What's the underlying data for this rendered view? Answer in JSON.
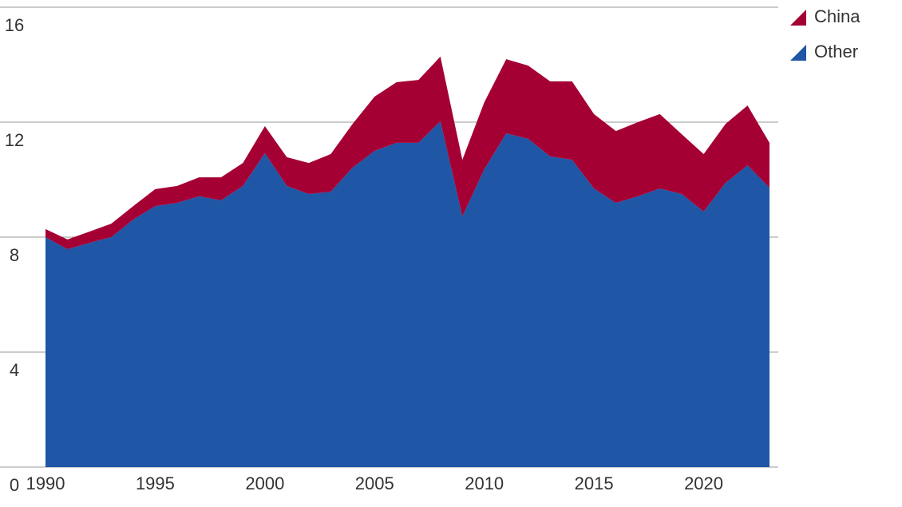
{
  "chart_data": {
    "type": "stacked_area",
    "x": [
      1990,
      1991,
      1992,
      1993,
      1994,
      1995,
      1996,
      1997,
      1998,
      1999,
      2000,
      2001,
      2002,
      2003,
      2004,
      2005,
      2006,
      2007,
      2008,
      2009,
      2010,
      2011,
      2012,
      2013,
      2014,
      2015,
      2016,
      2017,
      2018,
      2019,
      2020,
      2021,
      2022,
      2023
    ],
    "series": [
      {
        "name": "China",
        "color": "#a50034",
        "values": [
          0.28,
          0.34,
          0.39,
          0.47,
          0.47,
          0.59,
          0.59,
          0.66,
          0.8,
          0.8,
          0.94,
          1.0,
          1.08,
          1.31,
          1.52,
          1.89,
          2.11,
          2.19,
          2.25,
          1.97,
          2.33,
          2.58,
          2.55,
          2.61,
          2.73,
          2.59,
          2.5,
          2.58,
          2.59,
          2.08,
          2.0,
          2.05,
          2.08,
          1.56
        ]
      },
      {
        "name": "Other",
        "color": "#1f56a5",
        "values": [
          8.0,
          7.58,
          7.8,
          8.0,
          8.61,
          9.08,
          9.19,
          9.42,
          9.28,
          9.78,
          10.92,
          9.78,
          9.5,
          9.58,
          10.42,
          11.0,
          11.28,
          11.28,
          12.03,
          8.72,
          10.36,
          11.61,
          11.42,
          10.81,
          10.69,
          9.69,
          9.19,
          9.42,
          9.69,
          9.5,
          8.89,
          9.89,
          10.5,
          9.72
        ]
      }
    ],
    "xlim": [
      1990,
      2023
    ],
    "xticks": [
      1990,
      1995,
      2000,
      2005,
      2010,
      2015,
      2020
    ],
    "ylim": [
      0,
      16
    ],
    "yticks": [
      0,
      4,
      8,
      12,
      16
    ],
    "grid": true,
    "legend": "top-right"
  }
}
